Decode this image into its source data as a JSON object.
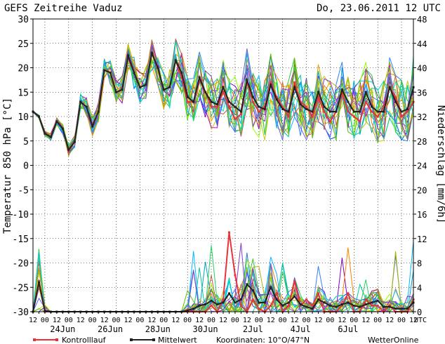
{
  "header": {
    "title": "GEFS Zeitreihe Vaduz",
    "run_time": "Do, 23.06.2011 12 UTC"
  },
  "footer": {
    "legend_control": "Kontrolllauf",
    "legend_mean": "Mittelwert",
    "coordinates": "Koordinaten: 10°O/47°N",
    "brand": "WetterOnline"
  },
  "colors": {
    "control": "#e8333a",
    "mean": "#222222",
    "members": [
      "#7f00c8",
      "#00a0c8",
      "#32c832",
      "#c8c800",
      "#0050ff",
      "#ff8000",
      "#00c8a0",
      "#a0d000",
      "#3080ff",
      "#c000c0",
      "#90ff00",
      "#20d060",
      "#e0a000",
      "#6060ff",
      "#00b8ff",
      "#b0b000",
      "#c06040",
      "#00e0c0",
      "#8040c0",
      "#60c000"
    ]
  },
  "chart_data": {
    "type": "line",
    "xlabel": "",
    "ylabel": "Temperatur 850 hPa [°C]",
    "y2label": "Niederschlag [mm/6h]",
    "ylim": [
      -30,
      30
    ],
    "y2lim": [
      0,
      48
    ],
    "yticks": [
      -30,
      -25,
      -20,
      -15,
      -10,
      -5,
      0,
      5,
      10,
      15,
      20,
      25,
      30
    ],
    "y2ticks": [
      0,
      4,
      8,
      12,
      16,
      20,
      24,
      28,
      32,
      36,
      40,
      44,
      48
    ],
    "grid": true,
    "x_hour_labels": [
      "12",
      "00",
      "12",
      "00",
      "12",
      "00",
      "12",
      "00",
      "12",
      "00",
      "12",
      "00",
      "12",
      "00",
      "12",
      "00",
      "12",
      "00",
      "12",
      "00",
      "12",
      "00",
      "12",
      "00",
      "12",
      "00",
      "12",
      "00",
      "12",
      "00",
      "12",
      "00",
      "12",
      "UTC"
    ],
    "x_date_labels": [
      "24Jun",
      "26Jun",
      "28Jun",
      "30Jun",
      "2Jul",
      "4Jul",
      "6Jul"
    ],
    "x_step_hours": 6,
    "temperature_mean": [
      11,
      10,
      6.5,
      5.8,
      9,
      7.5,
      3.2,
      4.8,
      13,
      12,
      8,
      11,
      19.5,
      19,
      15,
      15.5,
      22.5,
      19,
      16,
      16.5,
      23,
      20,
      15.5,
      16,
      21.5,
      19,
      14,
      13,
      18,
      15,
      13,
      12.5,
      16,
      13,
      12,
      11,
      17.5,
      14,
      12,
      11.5,
      16.5,
      13.5,
      11.5,
      11,
      16,
      12.5,
      11.5,
      11,
      15,
      12,
      11,
      11,
      15.5,
      13,
      11,
      11,
      15,
      12,
      11,
      11,
      16,
      13,
      11,
      11.5,
      16
    ],
    "temperature_control": [
      11,
      10,
      6.5,
      5.8,
      9,
      7.5,
      3,
      4.8,
      13,
      12,
      8,
      11,
      19.5,
      19,
      15,
      15.5,
      22,
      19,
      16,
      16.5,
      23,
      20,
      15.5,
      16,
      21.5,
      18,
      13,
      13,
      17.5,
      15,
      12,
      12,
      15,
      12,
      9.5,
      10.5,
      17,
      13,
      11,
      12,
      17,
      14,
      12,
      10,
      17,
      13,
      12,
      10,
      14,
      11,
      9,
      11,
      15,
      11,
      10,
      9,
      13,
      11,
      10,
      12,
      16,
      14,
      10,
      11,
      13
    ],
    "precip_mean": [
      0,
      4.8,
      0.2,
      0,
      0,
      0,
      0,
      0,
      0,
      0,
      0,
      0,
      0,
      0,
      0,
      0,
      0,
      0,
      0,
      0,
      0,
      0,
      0,
      0,
      0,
      0,
      0.2,
      0.5,
      1,
      1.2,
      1.8,
      1.2,
      1.5,
      3,
      1.5,
      2,
      4.5,
      3.5,
      1.5,
      1.5,
      4,
      2,
      1,
      1.5,
      2.5,
      1.2,
      0.8,
      0.5,
      2,
      1.5,
      1,
      0.8,
      1.2,
      1.5,
      1,
      0.8,
      1.2,
      1.5,
      1.8,
      0.8,
      0.8,
      0.5,
      0.5,
      0.5,
      1.5
    ],
    "precip_control": [
      0,
      5,
      0,
      0,
      0,
      0,
      0,
      0,
      0,
      0,
      0,
      0,
      0,
      0,
      0,
      0,
      0,
      0,
      0,
      0,
      0,
      0,
      0,
      0,
      0,
      0,
      0,
      0,
      0,
      0,
      1,
      0,
      2,
      13,
      6,
      1,
      0,
      2,
      0.5,
      0,
      1,
      3,
      0,
      1,
      5,
      1,
      2,
      1,
      3,
      0,
      0,
      0,
      1,
      3,
      0,
      0,
      2,
      1,
      1,
      0,
      1,
      0,
      0,
      0,
      2
    ]
  }
}
